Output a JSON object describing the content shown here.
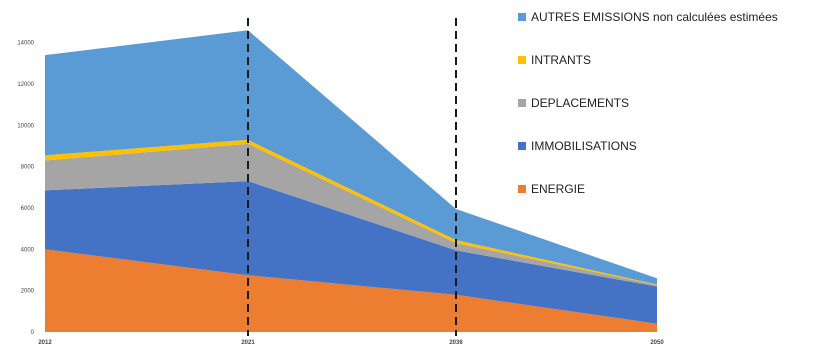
{
  "chart_data": {
    "type": "area",
    "stacked": true,
    "x": [
      "2012",
      "2021",
      "2036",
      "2050"
    ],
    "ylim": [
      0,
      15000
    ],
    "yticks": [
      0,
      2000,
      4000,
      6000,
      8000,
      10000,
      12000,
      14000
    ],
    "ytick_labels": [
      "0",
      "2000",
      "4000",
      "6000",
      "8000",
      "10000",
      "12000",
      "14000"
    ],
    "xtick_labels": [
      "2012",
      "2021",
      "2036",
      "2050"
    ],
    "vlines_at": [
      "2021",
      "2036"
    ],
    "legend_position": "right",
    "series": [
      {
        "name": "ENERGIE",
        "color": "#ED7D31",
        "values": [
          4000,
          2750,
          1800,
          400
        ]
      },
      {
        "name": "IMMOBILISATIONS",
        "color": "#4472C4",
        "values": [
          2850,
          4550,
          2150,
          1800
        ]
      },
      {
        "name": "DEPLACEMENTS",
        "color": "#A5A5A5",
        "values": [
          1450,
          1800,
          350,
          70
        ]
      },
      {
        "name": "INTRANTS",
        "color": "#FFC000",
        "values": [
          250,
          200,
          150,
          30
        ]
      },
      {
        "name": "AUTRES EMISSIONS non calculées estimées",
        "color": "#5B9BD5",
        "values": [
          4850,
          5300,
          1500,
          300
        ]
      }
    ]
  },
  "legend": [
    {
      "label": "AUTRES EMISSIONS non calculées estimées",
      "color": "#5B9BD5"
    },
    {
      "label": "INTRANTS",
      "color": "#FFC000"
    },
    {
      "label": "DEPLACEMENTS",
      "color": "#A5A5A5"
    },
    {
      "label": "IMMOBILISATIONS",
      "color": "#4472C4"
    },
    {
      "label": "ENERGIE",
      "color": "#ED7D31"
    }
  ]
}
